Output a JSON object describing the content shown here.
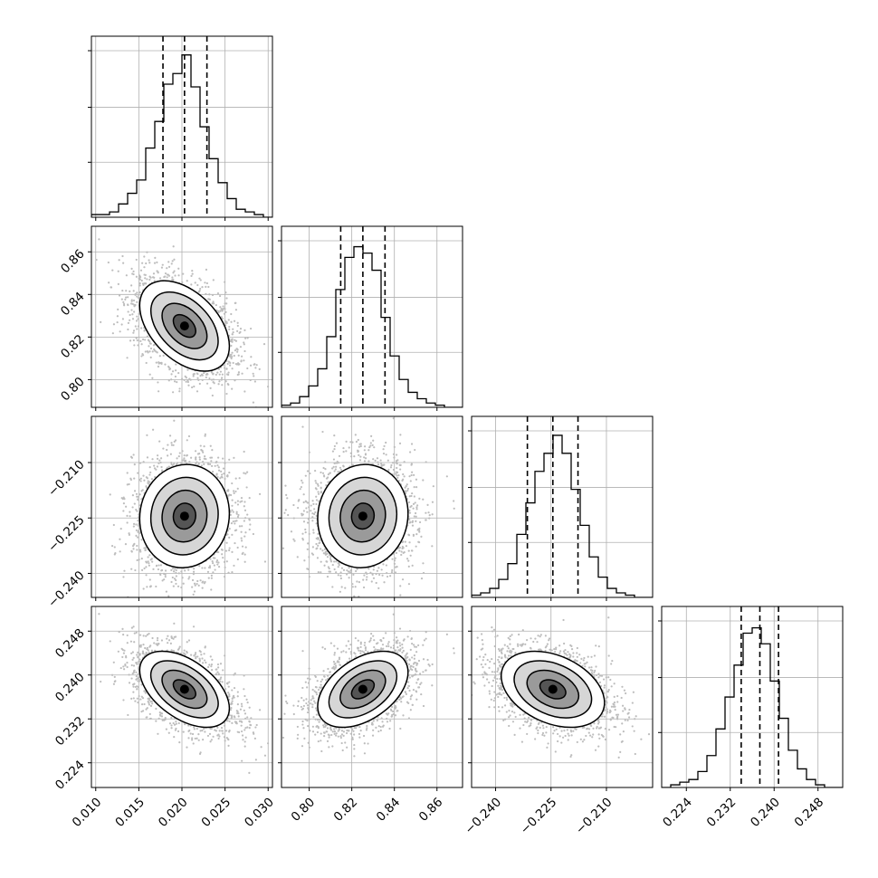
{
  "chart_data": {
    "type": "corner",
    "grid": true,
    "parameters": [
      {
        "ticks": [
          0.01,
          0.015,
          0.02,
          0.025,
          0.03
        ],
        "tick_labels": [
          "0.010",
          "0.015",
          "0.020",
          "0.025",
          "0.030"
        ],
        "range": [
          0.0095,
          0.0305
        ],
        "quantiles": [
          0.0178,
          0.0203,
          0.0229
        ],
        "hist": [
          1,
          1,
          2,
          5,
          9,
          14,
          26,
          36,
          50,
          54,
          61,
          49,
          34,
          22,
          13,
          7,
          3,
          2,
          1,
          0
        ],
        "hist_ymax": 66
      },
      {
        "ticks": [
          0.8,
          0.82,
          0.84,
          0.86
        ],
        "tick_labels": [
          "0.80",
          "0.82",
          "0.84",
          "0.86"
        ],
        "range": [
          0.787,
          0.872
        ],
        "quantiles": [
          0.8148,
          0.8252,
          0.8356
        ],
        "hist": [
          1,
          2,
          5,
          10,
          18,
          33,
          55,
          70,
          75,
          72,
          64,
          42,
          24,
          13,
          7,
          4,
          2,
          1,
          0,
          0
        ],
        "hist_ymax": 82
      },
      {
        "ticks": [
          -0.24,
          -0.225,
          -0.21
        ],
        "tick_labels": [
          "−0.240",
          "−0.225",
          "−0.210"
        ],
        "range": [
          -0.2465,
          -0.1975
        ],
        "quantiles": [
          -0.2314,
          -0.2245,
          -0.2177
        ],
        "hist": [
          1,
          2,
          4,
          8,
          15,
          28,
          42,
          56,
          64,
          72,
          64,
          48,
          32,
          18,
          9,
          4,
          2,
          1,
          0,
          0
        ],
        "hist_ymax": 78
      },
      {
        "ticks": [
          0.224,
          0.232,
          0.24,
          0.248
        ],
        "tick_labels": [
          "0.224",
          "0.232",
          "0.240",
          "0.248"
        ],
        "range": [
          0.2195,
          0.2525
        ],
        "quantiles": [
          0.234,
          0.2374,
          0.2408
        ],
        "hist": [
          0,
          1,
          2,
          3,
          6,
          12,
          22,
          34,
          46,
          58,
          60,
          54,
          40,
          26,
          14,
          7,
          3,
          1,
          0,
          0
        ],
        "hist_ymax": 66
      }
    ],
    "correlations": [
      [
        1,
        -0.45,
        0.05,
        -0.5
      ],
      [
        -0.45,
        1,
        0.05,
        0.45
      ],
      [
        0.05,
        0.05,
        1,
        -0.35
      ],
      [
        -0.5,
        0.45,
        -0.35,
        1
      ]
    ],
    "sample_counts": 2200
  }
}
